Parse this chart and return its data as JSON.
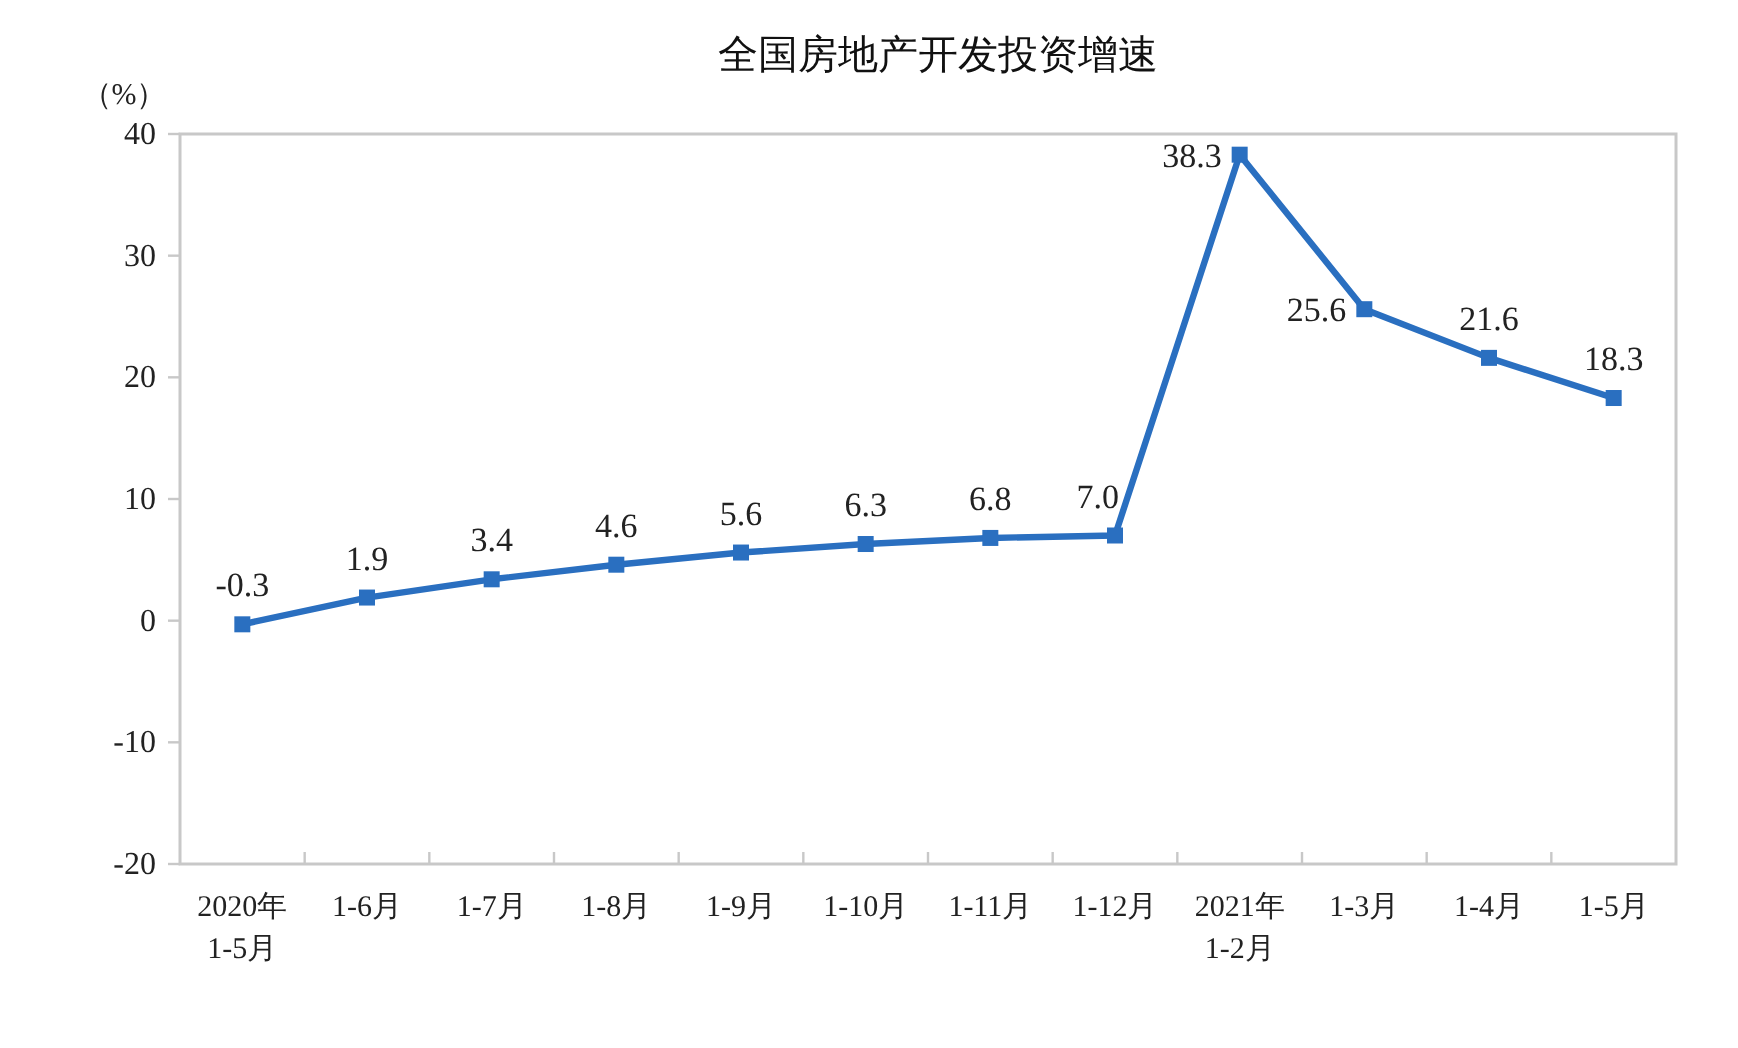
{
  "chart_data": {
    "type": "line",
    "title": "全国房地产开发投资增速",
    "ylabel": "（%）",
    "categories": [
      "2020年\n1-5月",
      "1-6月",
      "1-7月",
      "1-8月",
      "1-9月",
      "1-10月",
      "1-11月",
      "1-12月",
      "2021年\n1-2月",
      "1-3月",
      "1-4月",
      "1-5月"
    ],
    "series": [
      {
        "color": "#2a6fc0",
        "values": [
          -0.3,
          1.9,
          3.4,
          4.6,
          5.6,
          6.3,
          6.8,
          7.0,
          38.3,
          25.6,
          21.6,
          18.3
        ],
        "value_labels": [
          "-0.3",
          "1.9",
          "3.4",
          "4.6",
          "5.6",
          "6.3",
          "6.8",
          "7.0",
          "38.3",
          "25.6",
          "21.6",
          "18.3"
        ]
      }
    ],
    "ylim": [
      -20,
      40
    ],
    "yticks": [
      -20,
      -10,
      0,
      10,
      20,
      30,
      40
    ],
    "grid": false,
    "marker": "square",
    "line_style": "solid"
  }
}
